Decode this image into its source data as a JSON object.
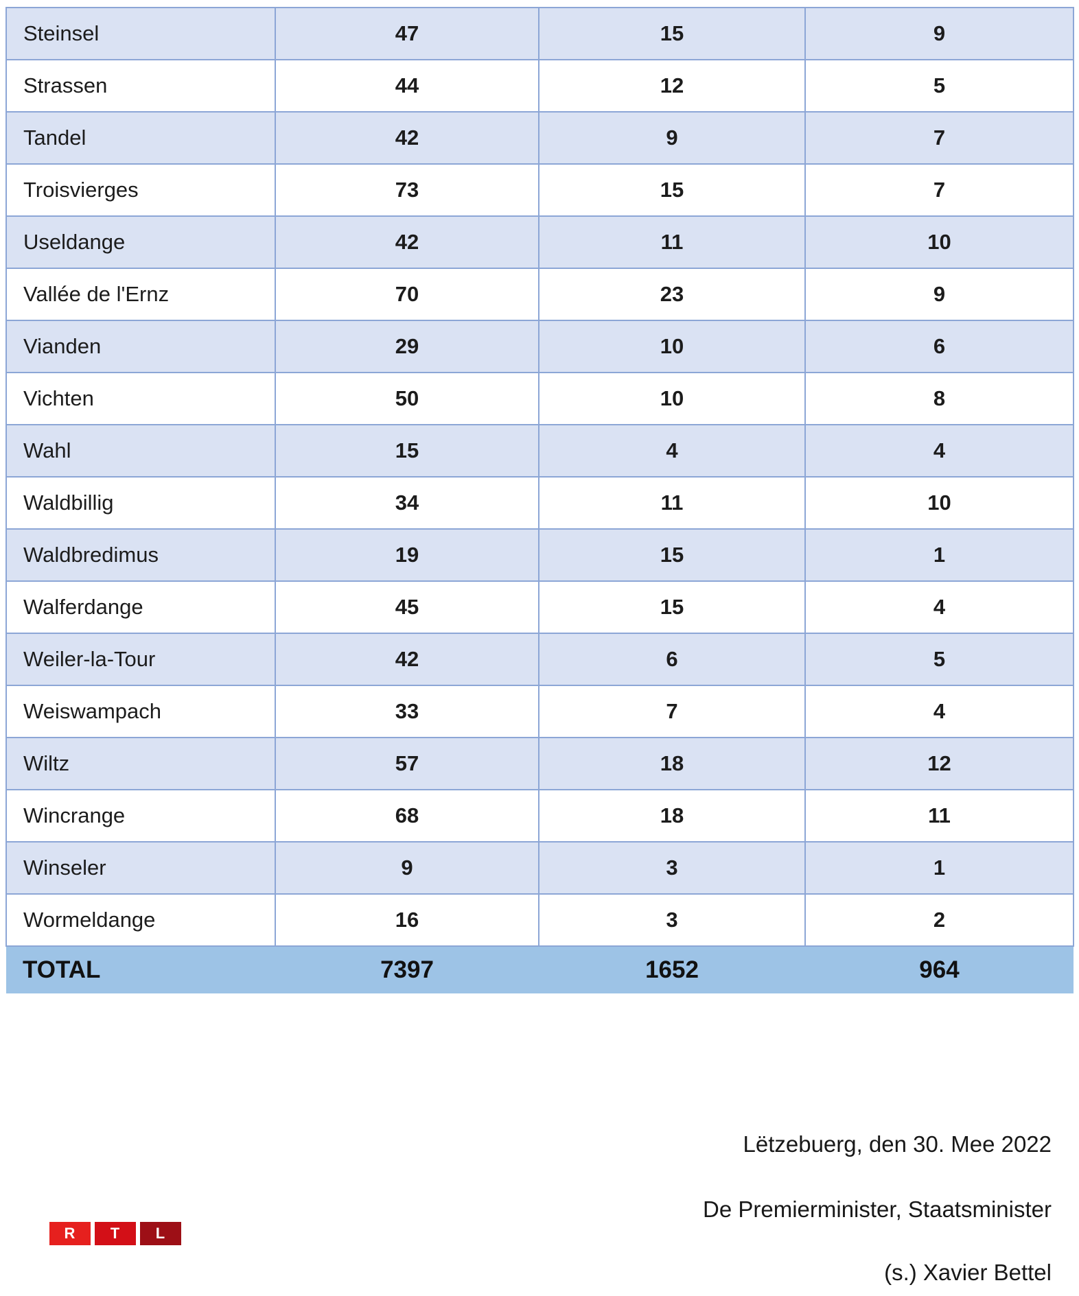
{
  "table": {
    "rows": [
      {
        "name": "Steinsel",
        "col2": "47",
        "col3": "15",
        "col4": "9"
      },
      {
        "name": "Strassen",
        "col2": "44",
        "col3": "12",
        "col4": "5"
      },
      {
        "name": "Tandel",
        "col2": "42",
        "col3": "9",
        "col4": "7"
      },
      {
        "name": "Troisvierges",
        "col2": "73",
        "col3": "15",
        "col4": "7"
      },
      {
        "name": "Useldange",
        "col2": "42",
        "col3": "11",
        "col4": "10"
      },
      {
        "name": "Vallée de l'Ernz",
        "col2": "70",
        "col3": "23",
        "col4": "9"
      },
      {
        "name": "Vianden",
        "col2": "29",
        "col3": "10",
        "col4": "6"
      },
      {
        "name": "Vichten",
        "col2": "50",
        "col3": "10",
        "col4": "8"
      },
      {
        "name": "Wahl",
        "col2": "15",
        "col3": "4",
        "col4": "4"
      },
      {
        "name": "Waldbillig",
        "col2": "34",
        "col3": "11",
        "col4": "10"
      },
      {
        "name": "Waldbredimus",
        "col2": "19",
        "col3": "15",
        "col4": "1"
      },
      {
        "name": "Walferdange",
        "col2": "45",
        "col3": "15",
        "col4": "4"
      },
      {
        "name": "Weiler-la-Tour",
        "col2": "42",
        "col3": "6",
        "col4": "5"
      },
      {
        "name": "Weiswampach",
        "col2": "33",
        "col3": "7",
        "col4": "4"
      },
      {
        "name": "Wiltz",
        "col2": "57",
        "col3": "18",
        "col4": "12"
      },
      {
        "name": "Wincrange",
        "col2": "68",
        "col3": "18",
        "col4": "11"
      },
      {
        "name": "Winseler",
        "col2": "9",
        "col3": "3",
        "col4": "1"
      },
      {
        "name": "Wormeldange",
        "col2": "16",
        "col3": "3",
        "col4": "2"
      }
    ],
    "total": {
      "label": "TOTAL",
      "col2": "7397",
      "col3": "1652",
      "col4": "964"
    }
  },
  "footer": {
    "place_date": "Lëtzebuerg, den 30. Mee 2022",
    "title_line": "De Premierminister, Staatsminister",
    "signature": "(s.) Xavier Bettel"
  },
  "logo": {
    "letters": [
      "R",
      "T",
      "L"
    ],
    "colors": [
      "#e6201e",
      "#d30f17",
      "#9d0f16"
    ]
  },
  "colors": {
    "row_shaded": "#dae2f3",
    "row_plain": "#ffffff",
    "border": "#8ca6d6",
    "total_row": "#9dc3e6",
    "text": "#1c1c1c"
  }
}
